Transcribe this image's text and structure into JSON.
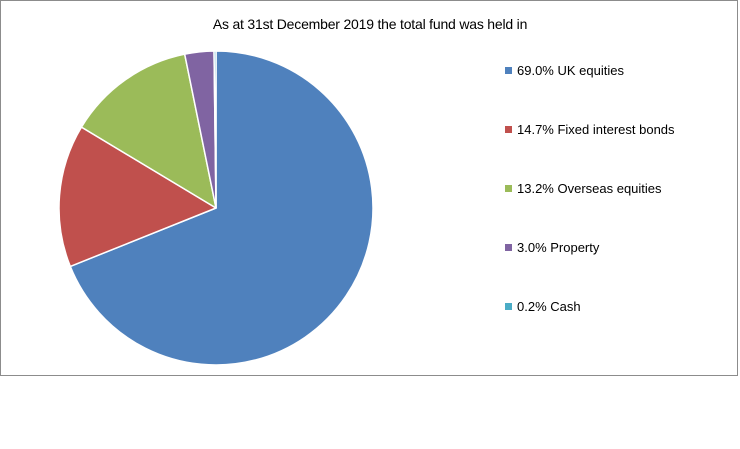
{
  "chart_data": {
    "type": "pie",
    "title": "As at 31st December 2019 the total fund was held in",
    "start_angle_deg": 0,
    "direction": "clockwise",
    "legend_position": "right",
    "slices": [
      {
        "label": "69.0% UK equities",
        "name": "UK equities",
        "value": 69.0,
        "color": "#4F81BD"
      },
      {
        "label": "14.7% Fixed interest bonds",
        "name": "Fixed interest bonds",
        "value": 14.7,
        "color": "#C0504D"
      },
      {
        "label": "13.2% Overseas equities",
        "name": "Overseas equities",
        "value": 13.2,
        "color": "#9BBB59"
      },
      {
        "label": "3.0% Property",
        "name": "Property",
        "value": 3.0,
        "color": "#8064A2"
      },
      {
        "label": "0.2% Cash",
        "name": "Cash",
        "value": 0.2,
        "color": "#4BACC6"
      }
    ]
  }
}
